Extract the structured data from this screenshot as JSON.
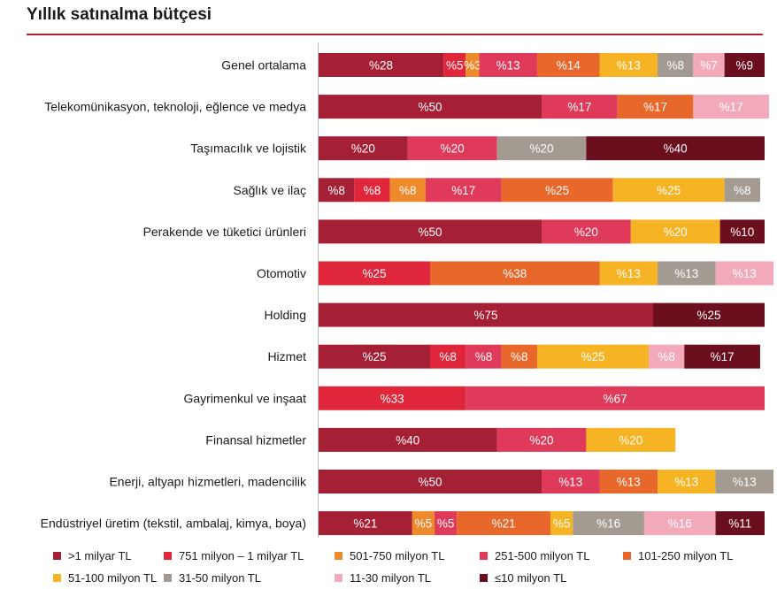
{
  "title": "Yıllık satınalma bütçesi",
  "chart_data": {
    "type": "bar",
    "orientation": "horizontal",
    "stacked": "100%",
    "title": "Yıllık satınalma bütçesi",
    "xlabel": "",
    "ylabel": "",
    "xlim": [
      0,
      100
    ],
    "value_prefix": "%",
    "legend_position": "bottom",
    "categories": [
      "Genel ortalama",
      "Telekomünikasyon, teknoloji, eğlence ve medya",
      "Taşımacılık ve lojistik",
      "Sağlık ve ilaç",
      "Perakende ve tüketici ürünleri",
      "Otomotiv",
      "Holding",
      "Hizmet",
      "Gayrimenkul ve inşaat",
      "Finansal hizmetler",
      "Enerji, altyapı hizmetleri, madencilik",
      "Endüstriyel üretim (tekstil, ambalaj, kimya, boya)"
    ],
    "series": [
      {
        "name": ">1 milyar TL",
        "color": "#a52035",
        "values": [
          28,
          50,
          20,
          8,
          50,
          0,
          75,
          25,
          0,
          40,
          50,
          21
        ]
      },
      {
        "name": "751 milyon – 1 milyar TL",
        "color": "#e0263a",
        "values": [
          5,
          0,
          0,
          8,
          0,
          25,
          0,
          8,
          33,
          0,
          0,
          0
        ]
      },
      {
        "name": "501-750 milyon TL",
        "color": "#ef8a2c",
        "values": [
          3,
          0,
          0,
          8,
          0,
          0,
          0,
          0,
          0,
          0,
          0,
          5
        ]
      },
      {
        "name": "251-500 milyon TL",
        "color": "#e03a5a",
        "values": [
          13,
          17,
          20,
          17,
          20,
          0,
          0,
          8,
          67,
          20,
          13,
          5
        ]
      },
      {
        "name": "101-250 milyon TL",
        "color": "#e8672a",
        "values": [
          14,
          17,
          0,
          25,
          0,
          38,
          0,
          8,
          0,
          0,
          13,
          21
        ]
      },
      {
        "name": "51-100 milyon TL",
        "color": "#f6b324",
        "values": [
          13,
          0,
          0,
          25,
          20,
          13,
          0,
          25,
          0,
          20,
          13,
          5
        ]
      },
      {
        "name": "31-50 milyon TL",
        "color": "#a39a92",
        "values": [
          8,
          0,
          20,
          8,
          0,
          13,
          0,
          0,
          0,
          0,
          13,
          16
        ]
      },
      {
        "name": "11-30 milyon TL",
        "color": "#f2a9ba",
        "values": [
          7,
          17,
          0,
          0,
          0,
          13,
          0,
          8,
          0,
          0,
          0,
          16
        ]
      },
      {
        "name": "≤10 milyon TL",
        "color": "#6b0f1e",
        "values": [
          9,
          0,
          40,
          0,
          10,
          0,
          25,
          17,
          0,
          0,
          0,
          11
        ]
      }
    ]
  }
}
